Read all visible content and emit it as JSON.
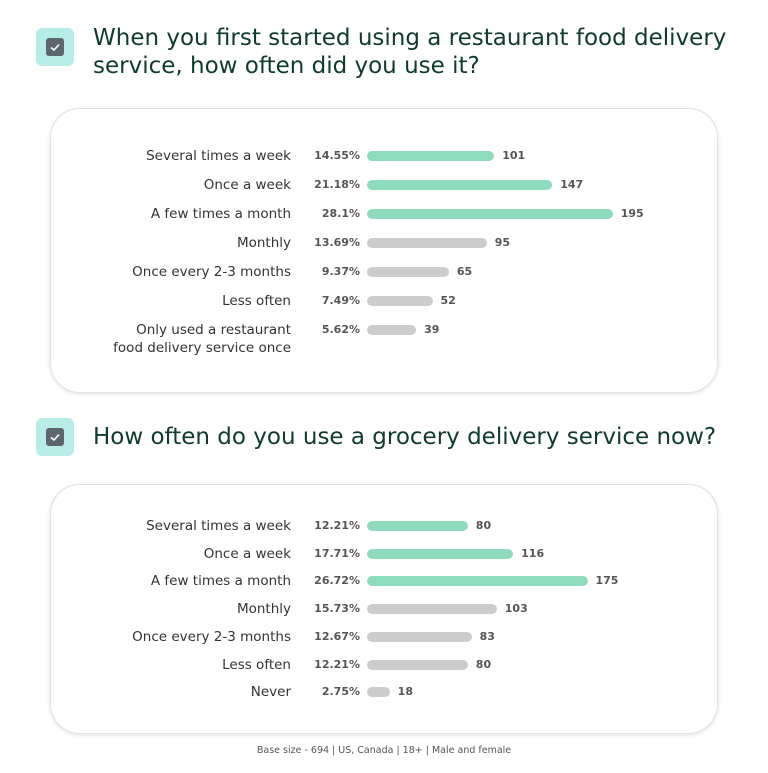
{
  "chart_data": [
    {
      "type": "bar",
      "title": "When you first started using a restaurant food delivery service, how often did you use it?",
      "categories": [
        "Several times a week",
        "Once a week",
        "A few times a month",
        "Monthly",
        "Once every 2-3 months",
        "Less often",
        "Only used a restaurant\nfood delivery service once"
      ],
      "values": [
        101,
        147,
        195,
        95,
        65,
        52,
        39
      ],
      "shares": [
        14.55,
        21.18,
        28.1,
        13.69,
        9.37,
        7.49,
        5.62
      ],
      "share_labels": [
        "14.55%",
        "21.18%",
        "28.1%",
        "13.69%",
        "9.37%",
        "7.49%",
        "5.62%"
      ],
      "colors": [
        "#8fdbbd",
        "#8fdbbd",
        "#8fdbbd",
        "#cccccc",
        "#cccccc",
        "#cccccc",
        "#cccccc"
      ]
    },
    {
      "type": "bar",
      "title": "How often do you use a grocery delivery service now?",
      "categories": [
        "Several times a week",
        "Once a week",
        "A few times a month",
        "Monthly",
        "Once every 2-3 months",
        "Less often",
        "Never"
      ],
      "values": [
        80,
        116,
        175,
        103,
        83,
        80,
        18
      ],
      "shares": [
        12.21,
        17.71,
        26.72,
        15.73,
        12.67,
        12.21,
        2.75
      ],
      "share_labels": [
        "12.21%",
        "17.71%",
        "26.72%",
        "15.73%",
        "12.67%",
        "12.21%",
        "2.75%"
      ],
      "colors": [
        "#8fdbbd",
        "#8fdbbd",
        "#8fdbbd",
        "#cccccc",
        "#cccccc",
        "#cccccc",
        "#cccccc"
      ]
    }
  ],
  "footer": "Base size - 694 | US, Canada | 18+ | Male and female"
}
